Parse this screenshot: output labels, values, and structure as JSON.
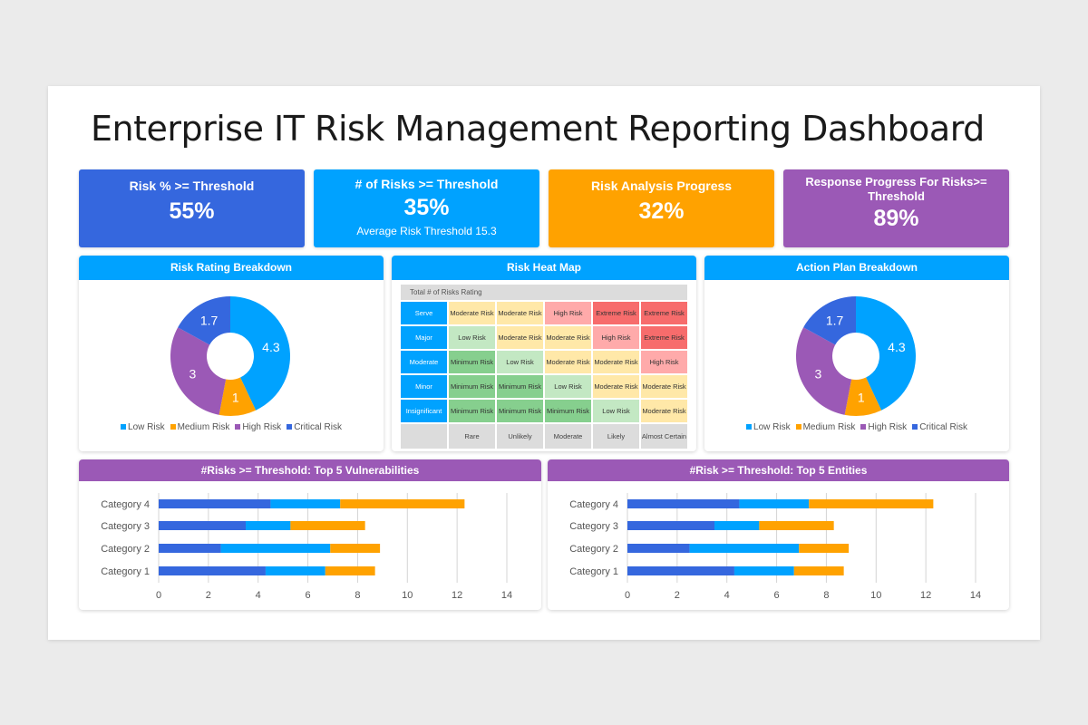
{
  "title": "Enterprise IT Risk Management Reporting Dashboard",
  "colors": {
    "blue": "#3567de",
    "cyan": "#00a2ff",
    "orange": "#ffa200",
    "purple": "#9b59b6"
  },
  "kpis": [
    {
      "title": "Risk % >= Threshold",
      "value": "55%",
      "color": "#3567de"
    },
    {
      "title": "# of Risks >= Threshold",
      "value": "35%",
      "sub": "Average Risk Threshold 15.3",
      "color": "#00a2ff"
    },
    {
      "title": "Risk Analysis Progress",
      "value": "32%",
      "color": "#ffa200"
    },
    {
      "title": "Response Progress For Risks>= Threshold",
      "value": "89%",
      "color": "#9b59b6"
    }
  ],
  "risk_rating": {
    "title": "Risk Rating Breakdown",
    "header_color": "#00a2ff"
  },
  "heat_map": {
    "title": "Risk Heat Map",
    "table_title": "Total # of Risks Rating",
    "rows": [
      {
        "label": "Serve",
        "cells": [
          "Moderate Risk",
          "Moderate Risk",
          "High Risk",
          "Extreme Risk",
          "Extreme Risk"
        ]
      },
      {
        "label": "Major",
        "cells": [
          "Low Risk",
          "Moderate Risk",
          "Moderate Risk",
          "High Risk",
          "Extreme Risk"
        ]
      },
      {
        "label": "Moderate",
        "cells": [
          "Minimum Risk",
          "Low Risk",
          "Moderate Risk",
          "Moderate Risk",
          "High Risk"
        ]
      },
      {
        "label": "Minor",
        "cells": [
          "Minimum Risk",
          "Minimum Risk",
          "Low Risk",
          "Moderate Risk",
          "Moderate Risk"
        ]
      },
      {
        "label": "Insignificant",
        "cells": [
          "Minimum Risk",
          "Minimum Risk",
          "Minimum Risk",
          "Low Risk",
          "Moderate Risk"
        ]
      }
    ],
    "columns": [
      "Rare",
      "Unlikely",
      "Moderate",
      "Likely",
      "Almost Certain"
    ],
    "level_colors": {
      "Minimum Risk": "#86cf8e",
      "Low Risk": "#c3e8c3",
      "Moderate Risk": "#ffe8a8",
      "High Risk": "#ffaaaa",
      "Extreme Risk": "#f76c6c"
    }
  },
  "action_plan": {
    "title": "Action Plan Breakdown"
  },
  "vuln": {
    "title": "#Risks >= Threshold: Top 5 Vulnerabilities"
  },
  "entities": {
    "title": "#Risk >= Threshold: Top 5 Entities"
  },
  "chart_data": [
    {
      "type": "pie",
      "title": "Risk Rating Breakdown",
      "donut": true,
      "categories": [
        "Low Risk",
        "Medium Risk",
        "High Risk",
        "Critical Risk"
      ],
      "values": [
        4.3,
        1,
        3,
        1.7
      ],
      "colors": [
        "#00a2ff",
        "#ffa200",
        "#9b59b6",
        "#3567de"
      ],
      "legend": "bottom"
    },
    {
      "type": "pie",
      "title": "Action Plan Breakdown",
      "donut": true,
      "categories": [
        "Low Risk",
        "Medium Risk",
        "High Risk",
        "Critical Risk"
      ],
      "values": [
        4.3,
        1,
        3,
        1.7
      ],
      "colors": [
        "#00a2ff",
        "#ffa200",
        "#9b59b6",
        "#3567de"
      ],
      "legend": "bottom"
    },
    {
      "type": "bar",
      "stacked": true,
      "orientation": "horizontal",
      "title": "#Risks >= Threshold: Top 5 Vulnerabilities",
      "categories": [
        "Category 1",
        "Category 2",
        "Category 3",
        "Category 4"
      ],
      "series": [
        {
          "values": [
            4.3,
            2.5,
            3.5,
            4.5
          ],
          "color": "#3567de"
        },
        {
          "values": [
            2.4,
            4.4,
            1.8,
            2.8
          ],
          "color": "#00a2ff"
        },
        {
          "values": [
            2,
            2,
            3,
            5
          ],
          "color": "#ffa200"
        }
      ],
      "xlim": [
        0,
        14
      ],
      "xticks": [
        "0",
        "2",
        "4",
        "6",
        "8",
        "10",
        "12",
        "14"
      ],
      "grid": true
    },
    {
      "type": "bar",
      "stacked": true,
      "orientation": "horizontal",
      "title": "#Risk >= Threshold: Top 5 Entities",
      "categories": [
        "Category 1",
        "Category 2",
        "Category 3",
        "Category 4"
      ],
      "series": [
        {
          "values": [
            4.3,
            2.5,
            3.5,
            4.5
          ],
          "color": "#3567de"
        },
        {
          "values": [
            2.4,
            4.4,
            1.8,
            2.8
          ],
          "color": "#00a2ff"
        },
        {
          "values": [
            2,
            2,
            3,
            5
          ],
          "color": "#ffa200"
        }
      ],
      "xlim": [
        0,
        14
      ],
      "xticks": [
        "0",
        "2",
        "4",
        "6",
        "8",
        "10",
        "12",
        "14"
      ],
      "grid": true
    }
  ]
}
